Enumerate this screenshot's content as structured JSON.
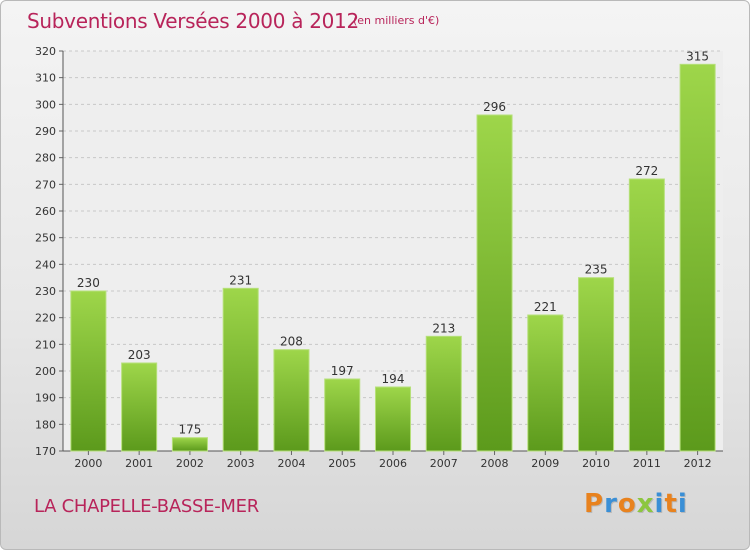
{
  "chart_data": {
    "type": "bar",
    "title": "Subventions Versées 2000 à 2012",
    "unit_note": "(en milliers d'€)",
    "categories": [
      "2000",
      "2001",
      "2002",
      "2003",
      "2004",
      "2005",
      "2006",
      "2007",
      "2008",
      "2009",
      "2010",
      "2011",
      "2012"
    ],
    "values": [
      230,
      203,
      175,
      231,
      208,
      197,
      194,
      213,
      296,
      221,
      235,
      272,
      315
    ],
    "ylim": [
      170,
      320
    ],
    "yticks": [
      170,
      180,
      190,
      200,
      210,
      220,
      230,
      240,
      250,
      260,
      270,
      280,
      290,
      300,
      310,
      320
    ],
    "grid": true,
    "bar_color": "#7cbf2e",
    "bar_color_light": "#9ed64a",
    "bar_color_dark": "#5c9a1c"
  },
  "footer": {
    "place_name": "LA CHAPELLE-BASSE-MER"
  },
  "logo": {
    "text": "Proxiti",
    "colors": [
      "#e8821e",
      "#3a8fd6",
      "#e8821e",
      "#8cc63f",
      "#3a8fd6",
      "#e8821e",
      "#3a8fd6"
    ]
  }
}
